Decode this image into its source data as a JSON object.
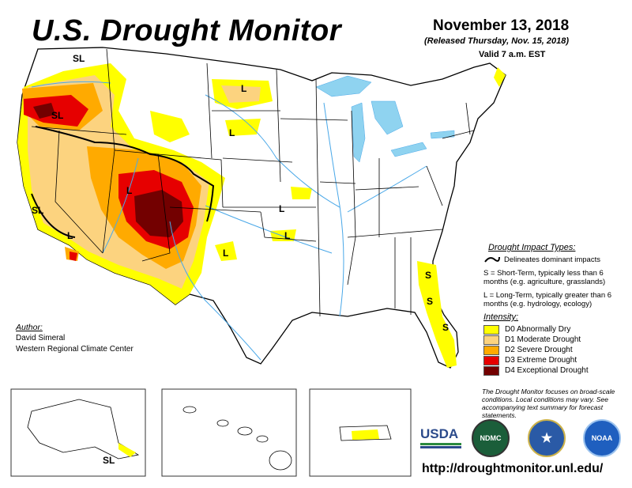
{
  "header": {
    "title": "U.S. Drought Monitor",
    "date": "November 13, 2018",
    "released": "(Released Thursday, Nov. 15, 2018)",
    "valid": "Valid 7 a.m. EST"
  },
  "impact_legend": {
    "title": "Drought Impact Types:",
    "line_label": "Delineates dominant impacts",
    "short_term": "S = Short-Term, typically less than 6 months (e.g. agriculture, grasslands)",
    "long_term": "L = Long-Term, typically greater than 6 months (e.g. hydrology, ecology)"
  },
  "intensity_legend": {
    "title": "Intensity:",
    "items": [
      {
        "label": "D0 Abnormally Dry",
        "color": "#ffff00"
      },
      {
        "label": "D1 Moderate Drought",
        "color": "#fcd37f"
      },
      {
        "label": "D2 Severe Drought",
        "color": "#ffaa00"
      },
      {
        "label": "D3 Extreme Drought",
        "color": "#e60000"
      },
      {
        "label": "D4 Exceptional Drought",
        "color": "#730000"
      }
    ]
  },
  "author": {
    "label": "Author:",
    "name": "David Simeral",
    "org": "Western Regional Climate Center"
  },
  "note": "The Drought Monitor focuses on broad-scale conditions. Local conditions may vary. See accompanying text summary for forecast statements.",
  "url": "http://droughtmonitor.unl.edu/",
  "map_labels": {
    "sl": "SL",
    "s": "S",
    "l": "L"
  },
  "logos": {
    "usda": "USDA",
    "ndmc": "NDMC",
    "noaa": "NOAA"
  },
  "colors": {
    "water": "#8fd3f0",
    "river": "#4aa8e8",
    "border": "#000000"
  }
}
